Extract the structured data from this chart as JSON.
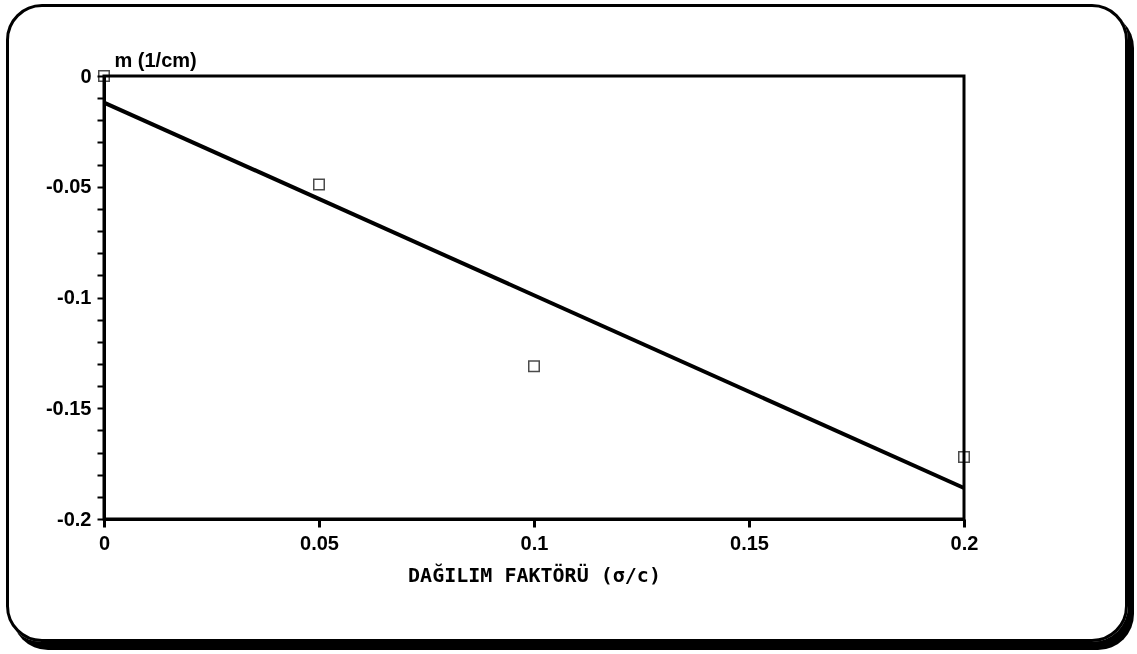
{
  "chart_data": {
    "type": "scatter",
    "xlabel": "DAĞILIM FAKTÖRÜ  (σ/c)",
    "ylabel": "m    (1/cm)",
    "xlim": [
      0,
      0.2
    ],
    "xticks": [
      0,
      0.05,
      0.1,
      0.15,
      0.2
    ],
    "ylim": [
      -0.2,
      0
    ],
    "yticks": [
      -0.2,
      {
        "value": -0.19,
        "label": null
      },
      {
        "value": -0.18,
        "label": null
      },
      {
        "value": -0.17,
        "label": null
      },
      {
        "value": -0.16,
        "label": null
      },
      -0.15,
      {
        "value": -0.14,
        "label": null
      },
      {
        "value": -0.13,
        "label": null
      },
      {
        "value": -0.12,
        "label": null
      },
      {
        "value": -0.11,
        "label": null
      },
      -0.1,
      {
        "value": -0.09,
        "label": null
      },
      {
        "value": -0.08,
        "label": null
      },
      {
        "value": -0.07,
        "label": null
      },
      {
        "value": -0.06,
        "label": null
      },
      -0.05,
      {
        "value": -0.04,
        "label": null
      },
      {
        "value": -0.03,
        "label": null
      },
      {
        "value": -0.02,
        "label": null
      },
      {
        "value": -0.01,
        "label": null
      },
      0
    ],
    "grid": false,
    "series": [
      {
        "marker": "square",
        "color": "#000000",
        "x": [
          0,
          0.05,
          0.1,
          0.2
        ],
        "values": [
          0,
          -0.049,
          -0.131,
          -0.172
        ]
      },
      {
        "type": "line",
        "color": "#000000",
        "x": [
          0,
          0.2
        ],
        "values": [
          -0.012,
          -0.186
        ]
      }
    ]
  }
}
